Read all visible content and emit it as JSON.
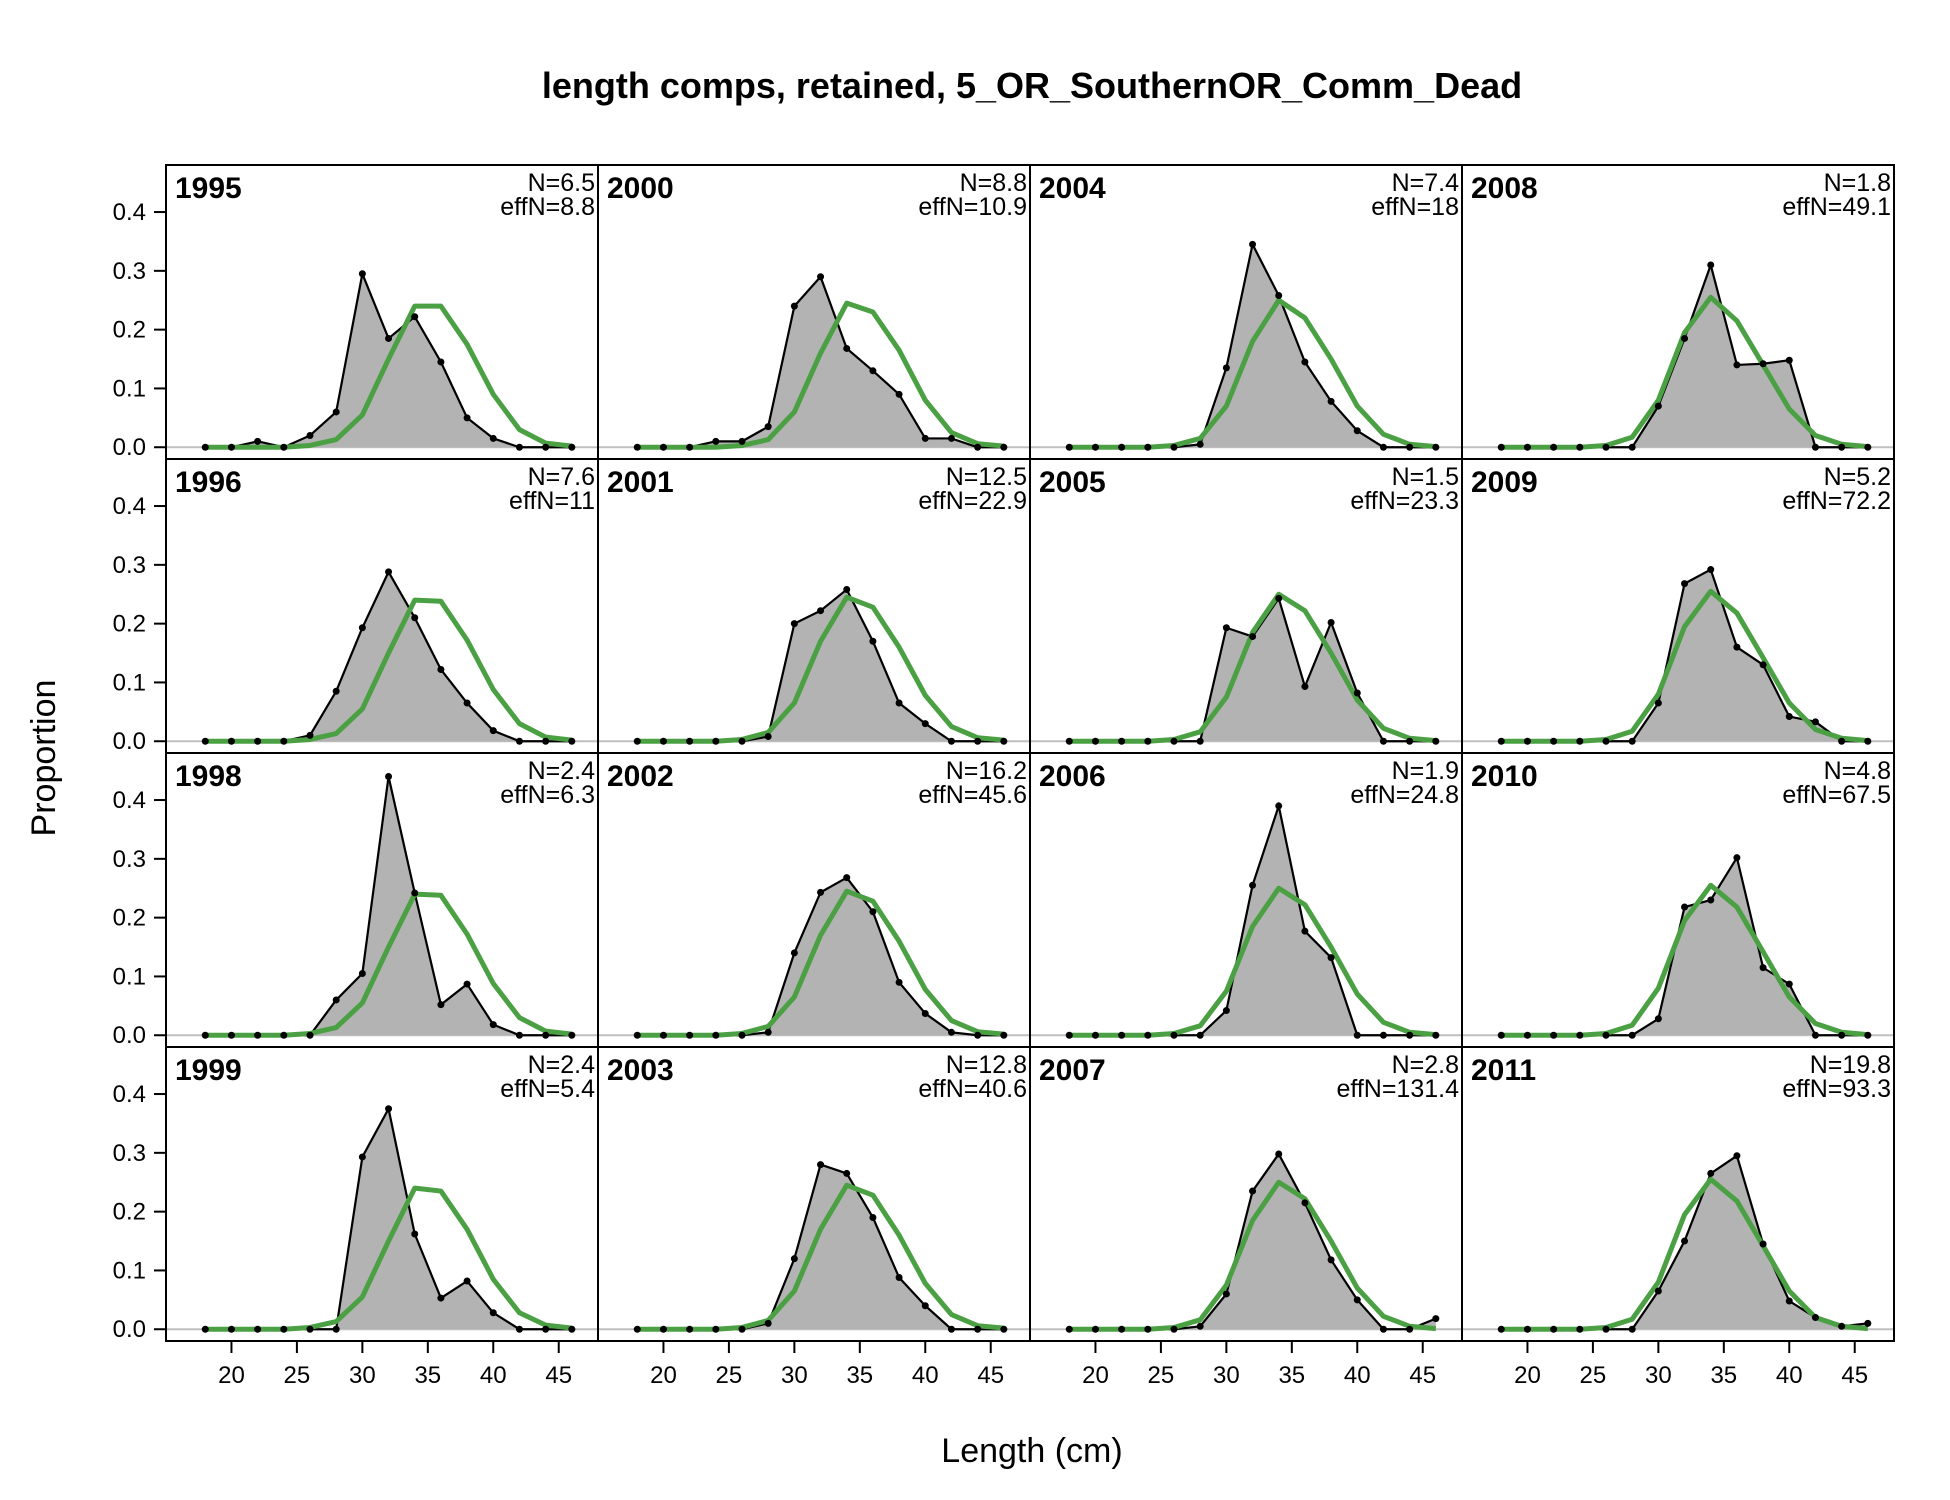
{
  "chart_data": {
    "type": "area",
    "title": "length comps, retained, 5_OR_SouthernOR_Comm_Dead",
    "xlabel": "Length (cm)",
    "ylabel": "Proportion",
    "xlim": [
      15,
      48
    ],
    "ylim": [
      -0.02,
      0.48
    ],
    "x_ticks": [
      20,
      25,
      30,
      35,
      40,
      45
    ],
    "y_ticks": [
      0.0,
      0.1,
      0.2,
      0.3,
      0.4
    ],
    "y_tick_labels": [
      "0.0",
      "0.1",
      "0.2",
      "0.3",
      "0.4"
    ],
    "x": [
      18,
      20,
      22,
      24,
      26,
      28,
      30,
      32,
      34,
      36,
      38,
      40,
      42,
      44,
      46
    ],
    "series_styles": {
      "observed": {
        "fill": "#b3b3b3",
        "line": "#000000"
      },
      "expected": {
        "line": "#4aa043"
      }
    },
    "panels": [
      {
        "year": "1995",
        "n_label": "N=6.5",
        "effn_label": "effN=8.8",
        "observed": [
          0,
          0,
          0.01,
          0,
          0.02,
          0.06,
          0.295,
          0.185,
          0.222,
          0.145,
          0.05,
          0.015,
          0,
          0,
          0
        ],
        "expected": [
          0,
          0,
          0,
          0,
          0.003,
          0.013,
          0.055,
          0.15,
          0.24,
          0.24,
          0.175,
          0.09,
          0.03,
          0.007,
          0.002
        ]
      },
      {
        "year": "2000",
        "n_label": "N=8.8",
        "effn_label": "effN=10.9",
        "observed": [
          0,
          0,
          0,
          0.01,
          0.01,
          0.035,
          0.24,
          0.29,
          0.168,
          0.13,
          0.09,
          0.015,
          0.015,
          0,
          0
        ],
        "expected": [
          0,
          0,
          0,
          0,
          0.003,
          0.013,
          0.06,
          0.16,
          0.245,
          0.23,
          0.165,
          0.08,
          0.025,
          0.006,
          0.002
        ]
      },
      {
        "year": "2004",
        "n_label": "N=7.4",
        "effn_label": "effN=18",
        "observed": [
          0,
          0,
          0,
          0,
          0,
          0.005,
          0.135,
          0.345,
          0.258,
          0.145,
          0.078,
          0.028,
          0,
          0,
          0
        ],
        "expected": [
          0,
          0,
          0,
          0,
          0.003,
          0.015,
          0.07,
          0.18,
          0.25,
          0.22,
          0.15,
          0.07,
          0.022,
          0.005,
          0.001
        ]
      },
      {
        "year": "2008",
        "n_label": "N=1.8",
        "effn_label": "effN=49.1",
        "observed": [
          0,
          0,
          0,
          0,
          0,
          0,
          0.07,
          0.185,
          0.31,
          0.14,
          0.142,
          0.148,
          0,
          0,
          0
        ],
        "expected": [
          0,
          0,
          0,
          0,
          0.003,
          0.017,
          0.08,
          0.195,
          0.255,
          0.215,
          0.14,
          0.065,
          0.02,
          0.005,
          0.001
        ]
      },
      {
        "year": "1996",
        "n_label": "N=7.6",
        "effn_label": "effN=11",
        "observed": [
          0,
          0,
          0,
          0,
          0.01,
          0.085,
          0.193,
          0.288,
          0.21,
          0.122,
          0.065,
          0.018,
          0,
          0,
          0
        ],
        "expected": [
          0,
          0,
          0,
          0,
          0.003,
          0.013,
          0.055,
          0.15,
          0.24,
          0.238,
          0.172,
          0.088,
          0.03,
          0.007,
          0.002
        ]
      },
      {
        "year": "2001",
        "n_label": "N=12.5",
        "effn_label": "effN=22.9",
        "observed": [
          0,
          0,
          0,
          0,
          0,
          0.008,
          0.2,
          0.222,
          0.258,
          0.17,
          0.065,
          0.03,
          0,
          0,
          0
        ],
        "expected": [
          0,
          0,
          0,
          0,
          0.003,
          0.015,
          0.065,
          0.17,
          0.245,
          0.228,
          0.16,
          0.078,
          0.025,
          0.006,
          0.002
        ]
      },
      {
        "year": "2005",
        "n_label": "N=1.5",
        "effn_label": "effN=23.3",
        "observed": [
          0,
          0,
          0,
          0,
          0,
          0,
          0.193,
          0.178,
          0.243,
          0.093,
          0.202,
          0.082,
          0,
          0,
          0
        ],
        "expected": [
          0,
          0,
          0,
          0,
          0.003,
          0.016,
          0.075,
          0.185,
          0.25,
          0.222,
          0.15,
          0.07,
          0.022,
          0.005,
          0.001
        ]
      },
      {
        "year": "2009",
        "n_label": "N=5.2",
        "effn_label": "effN=72.2",
        "observed": [
          0,
          0,
          0,
          0,
          0,
          0,
          0.065,
          0.268,
          0.292,
          0.16,
          0.13,
          0.042,
          0.033,
          0,
          0
        ],
        "expected": [
          0,
          0,
          0,
          0,
          0.003,
          0.017,
          0.08,
          0.195,
          0.255,
          0.218,
          0.142,
          0.065,
          0.02,
          0.005,
          0.001
        ]
      },
      {
        "year": "1998",
        "n_label": "N=2.4",
        "effn_label": "effN=6.3",
        "observed": [
          0,
          0,
          0,
          0,
          0,
          0.06,
          0.105,
          0.44,
          0.242,
          0.052,
          0.087,
          0.018,
          0,
          0,
          0
        ],
        "expected": [
          0,
          0,
          0,
          0,
          0.003,
          0.013,
          0.055,
          0.15,
          0.24,
          0.238,
          0.172,
          0.088,
          0.03,
          0.007,
          0.002
        ]
      },
      {
        "year": "2002",
        "n_label": "N=16.2",
        "effn_label": "effN=45.6",
        "observed": [
          0,
          0,
          0,
          0,
          0,
          0.005,
          0.14,
          0.243,
          0.268,
          0.21,
          0.09,
          0.037,
          0.005,
          0,
          0
        ],
        "expected": [
          0,
          0,
          0,
          0,
          0.003,
          0.015,
          0.065,
          0.17,
          0.245,
          0.228,
          0.16,
          0.078,
          0.025,
          0.006,
          0.002
        ]
      },
      {
        "year": "2006",
        "n_label": "N=1.9",
        "effn_label": "effN=24.8",
        "observed": [
          0,
          0,
          0,
          0,
          0,
          0,
          0.042,
          0.255,
          0.39,
          0.177,
          0.132,
          0,
          0,
          0,
          0
        ],
        "expected": [
          0,
          0,
          0,
          0,
          0.003,
          0.016,
          0.075,
          0.185,
          0.25,
          0.222,
          0.15,
          0.07,
          0.022,
          0.005,
          0.001
        ]
      },
      {
        "year": "2010",
        "n_label": "N=4.8",
        "effn_label": "effN=67.5",
        "observed": [
          0,
          0,
          0,
          0,
          0,
          0,
          0.028,
          0.218,
          0.23,
          0.302,
          0.115,
          0.087,
          0,
          0,
          0
        ],
        "expected": [
          0,
          0,
          0,
          0,
          0.003,
          0.017,
          0.08,
          0.195,
          0.255,
          0.218,
          0.142,
          0.065,
          0.02,
          0.005,
          0.001
        ]
      },
      {
        "year": "1999",
        "n_label": "N=2.4",
        "effn_label": "effN=5.4",
        "observed": [
          0,
          0,
          0,
          0,
          0,
          0,
          0.293,
          0.375,
          0.162,
          0.053,
          0.082,
          0.028,
          0,
          0,
          0
        ],
        "expected": [
          0,
          0,
          0,
          0,
          0.003,
          0.013,
          0.055,
          0.15,
          0.24,
          0.235,
          0.17,
          0.085,
          0.028,
          0.007,
          0.002
        ]
      },
      {
        "year": "2003",
        "n_label": "N=12.8",
        "effn_label": "effN=40.6",
        "observed": [
          0,
          0,
          0,
          0,
          0,
          0.01,
          0.12,
          0.28,
          0.265,
          0.19,
          0.088,
          0.04,
          0,
          0,
          0
        ],
        "expected": [
          0,
          0,
          0,
          0,
          0.003,
          0.015,
          0.065,
          0.17,
          0.245,
          0.228,
          0.16,
          0.078,
          0.025,
          0.006,
          0.002
        ]
      },
      {
        "year": "2007",
        "n_label": "N=2.8",
        "effn_label": "effN=131.4",
        "observed": [
          0,
          0,
          0,
          0,
          0,
          0.005,
          0.06,
          0.235,
          0.298,
          0.215,
          0.118,
          0.05,
          0,
          0,
          0.018
        ],
        "expected": [
          0,
          0,
          0,
          0,
          0.003,
          0.016,
          0.075,
          0.185,
          0.25,
          0.222,
          0.15,
          0.07,
          0.022,
          0.005,
          0.001
        ]
      },
      {
        "year": "2011",
        "n_label": "N=19.8",
        "effn_label": "effN=93.3",
        "observed": [
          0,
          0,
          0,
          0,
          0,
          0,
          0.065,
          0.15,
          0.265,
          0.295,
          0.145,
          0.048,
          0.02,
          0.005,
          0.01
        ],
        "expected": [
          0,
          0,
          0,
          0,
          0.003,
          0.017,
          0.08,
          0.195,
          0.255,
          0.218,
          0.142,
          0.065,
          0.02,
          0.005,
          0.001
        ]
      }
    ]
  }
}
